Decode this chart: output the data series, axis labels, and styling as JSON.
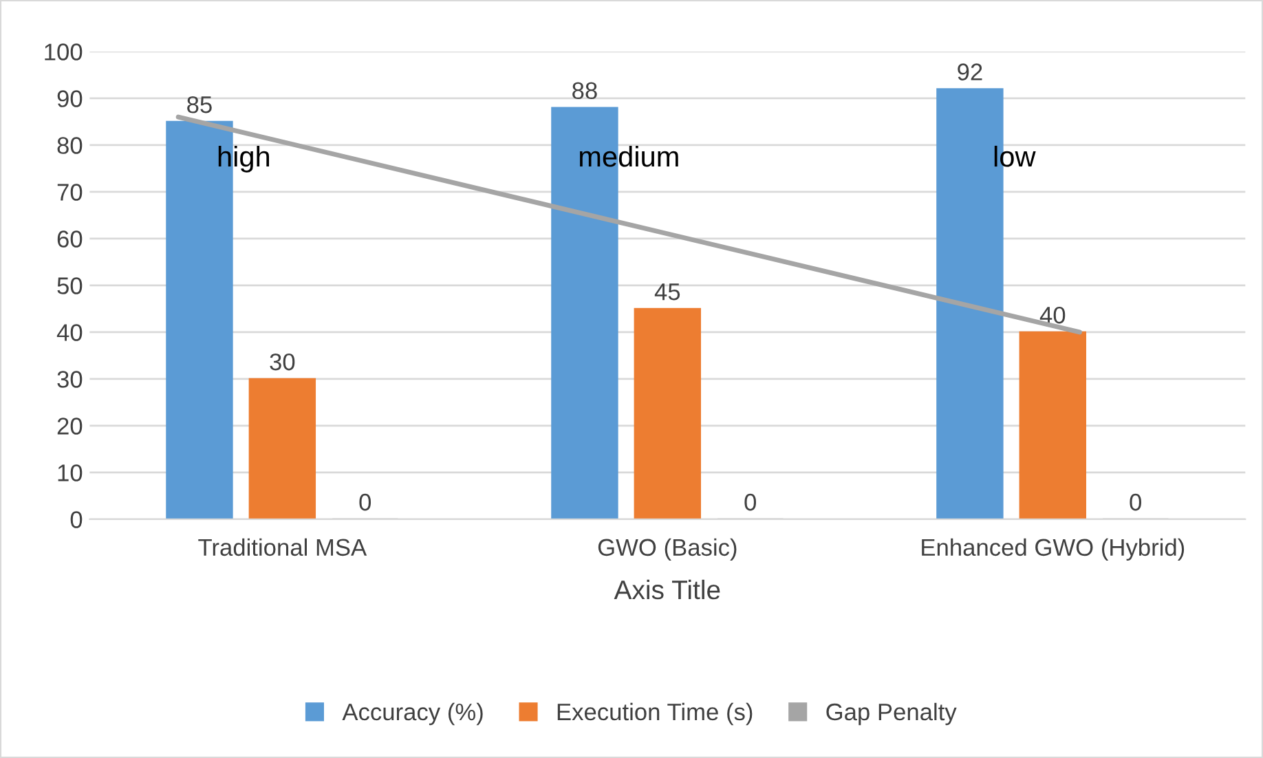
{
  "chart_data": {
    "type": "bar",
    "xlabel": "Axis Title",
    "categories": [
      "Traditional MSA",
      "GWO (Basic)",
      "Enhanced GWO (Hybrid)"
    ],
    "series": [
      {
        "name": "Accuracy (%)",
        "color": "#5b9bd5",
        "values": [
          85,
          88,
          92
        ]
      },
      {
        "name": "Execution Time (s)",
        "color": "#ed7d31",
        "values": [
          30,
          45,
          40
        ]
      },
      {
        "name": "Gap Penalty",
        "color": "#a5a5a5",
        "values": [
          0,
          0,
          0
        ]
      }
    ],
    "ylim": [
      0,
      100
    ],
    "yticks": [
      0,
      10,
      20,
      30,
      40,
      50,
      60,
      70,
      80,
      90,
      100
    ],
    "grid": "y",
    "legend": "bottom",
    "data_labels": true,
    "annotations": [
      "high",
      "medium",
      "low"
    ]
  }
}
